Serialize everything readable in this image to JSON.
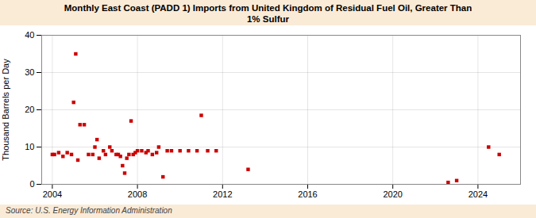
{
  "chart_data": {
    "type": "scatter",
    "title": "Monthly East Coast (PADD 1) Imports from United Kingdom of Residual Fuel Oil, Greater Than\n1% Sulfur",
    "ylabel": "Thousand Barrels per Day",
    "source": "Source: U.S. Energy Information Administration",
    "color": "#cc0000",
    "marker": "square",
    "grid": true,
    "xlim": [
      2003.5,
      2026.0
    ],
    "ylim": [
      0,
      40
    ],
    "xticks": [
      2004,
      2008,
      2012,
      2016,
      2020,
      2024
    ],
    "yticks": [
      0,
      10,
      20,
      30,
      40
    ],
    "x": [
      2004.0,
      2004.1,
      2004.3,
      2004.5,
      2004.7,
      2004.9,
      2005.0,
      2005.1,
      2005.2,
      2005.3,
      2005.5,
      2005.7,
      2005.9,
      2006.0,
      2006.1,
      2006.2,
      2006.4,
      2006.5,
      2006.7,
      2006.8,
      2007.0,
      2007.1,
      2007.2,
      2007.3,
      2007.4,
      2007.5,
      2007.6,
      2007.7,
      2007.8,
      2007.9,
      2008.0,
      2008.2,
      2008.4,
      2008.5,
      2008.7,
      2008.9,
      2009.0,
      2009.2,
      2009.4,
      2009.6,
      2010.0,
      2010.4,
      2010.8,
      2011.0,
      2011.3,
      2011.7,
      2013.2,
      2022.6,
      2023.0,
      2024.5,
      2025.0
    ],
    "values": [
      8.0,
      8.0,
      8.5,
      7.5,
      8.5,
      8.0,
      22.0,
      35.0,
      6.5,
      16.0,
      16.0,
      8.0,
      8.0,
      10.0,
      12.0,
      7.0,
      9.0,
      8.0,
      10.0,
      9.0,
      8.0,
      8.0,
      7.5,
      5.0,
      3.0,
      7.0,
      8.0,
      17.0,
      8.0,
      8.5,
      9.0,
      9.0,
      8.5,
      9.0,
      8.0,
      8.5,
      10.0,
      2.0,
      9.0,
      9.0,
      9.0,
      9.0,
      9.0,
      18.5,
      9.0,
      9.0,
      4.0,
      0.5,
      1.0,
      10.0,
      8.0
    ]
  }
}
